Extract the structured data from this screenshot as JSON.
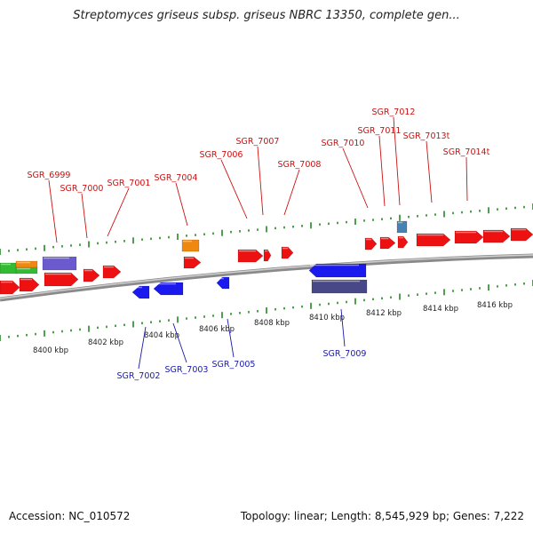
{
  "title": "Streptomyces griseus subsp. griseus NBRC 13350, complete gen...",
  "footer": {
    "accession": "Accession: NC_010572",
    "topology": "Topology: linear; Length: 8,545,929 bp; Genes: 7,222"
  },
  "colors": {
    "forward_gene": "#ee1111",
    "reverse_gene": "#1a1aee",
    "forward_label": "#cc1111",
    "reverse_label": "#1a1aaa",
    "tick": "#228822",
    "backbone": "#888888",
    "green_feature": "#33bb33",
    "orange_feature": "#ee8811",
    "purple_feature": "#6a5acd",
    "steel_feature": "#4682b4",
    "navy_feature": "#484888"
  },
  "scale_labels": [
    "8400 kbp",
    "8402 kbp",
    "8404 kbp",
    "8406 kbp",
    "8408 kbp",
    "8410 kbp",
    "8412 kbp",
    "8414 kbp",
    "8416 kbp"
  ],
  "forward_labels": [
    "SGR_6999",
    "SGR_7000",
    "SGR_7001",
    "SGR_7004",
    "SGR_7006",
    "SGR_7007",
    "SGR_7008",
    "SGR_7010",
    "SGR_7011",
    "SGR_7012",
    "SGR_7013t",
    "SGR_7014t"
  ],
  "reverse_labels": [
    "SGR_7002",
    "SGR_7003",
    "SGR_7005",
    "SGR_7009"
  ]
}
